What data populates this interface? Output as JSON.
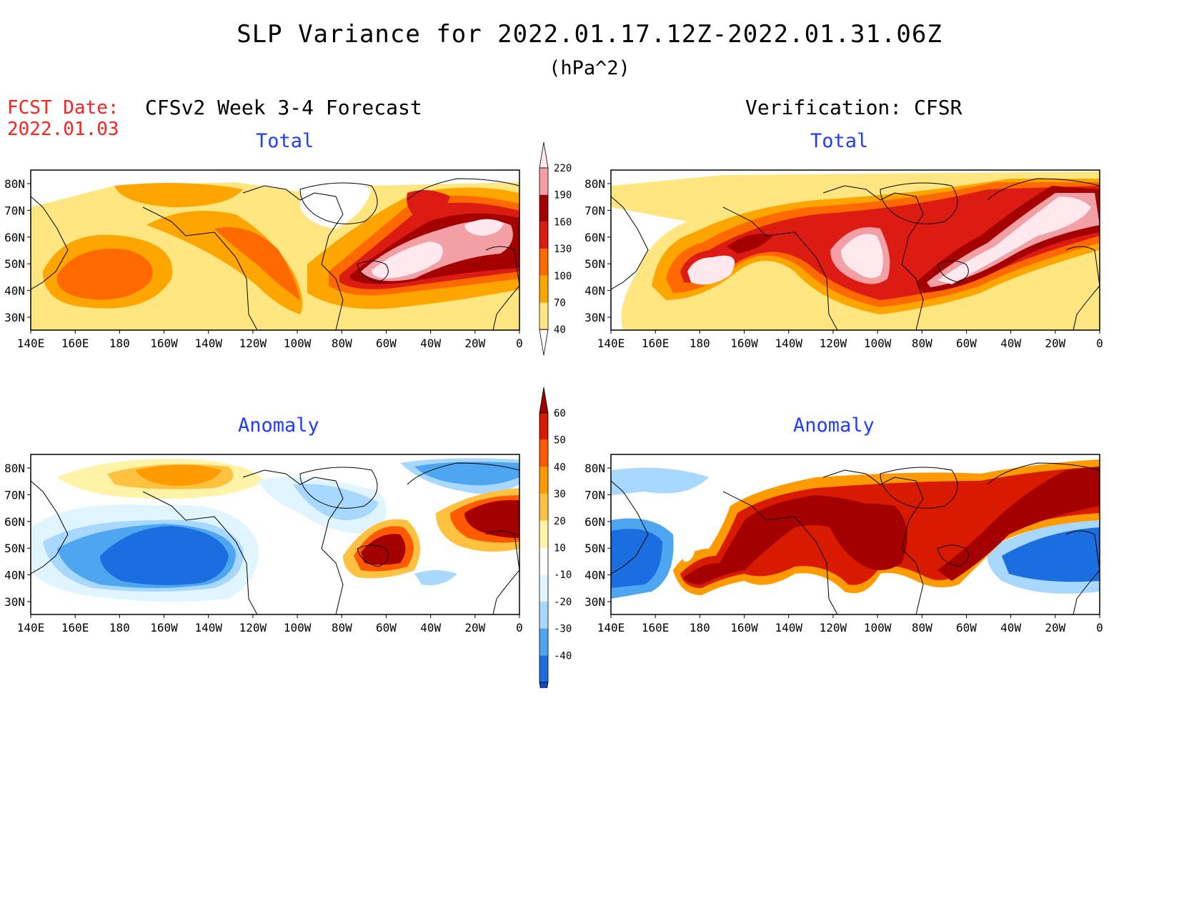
{
  "header": {
    "title": "SLP Variance for 2022.01.17.12Z-2022.01.31.06Z",
    "units": "(hPa^2)",
    "fcst_label": "FCST Date:",
    "fcst_date": "2022.01.03",
    "left_column": "CFSv2 Week 3-4 Forecast",
    "right_column": "Verification: CFSR"
  },
  "panels": [
    {
      "id": "fcst-total",
      "title": "Total"
    },
    {
      "id": "verif-total",
      "title": "Total"
    },
    {
      "id": "fcst-anomaly",
      "title": "Anomaly"
    },
    {
      "id": "verif-anomaly",
      "title": "Anomaly"
    }
  ],
  "axes": {
    "lon_labels": [
      "140E",
      "160E",
      "180",
      "160W",
      "140W",
      "120W",
      "100W",
      "80W",
      "60W",
      "40W",
      "20W",
      "0"
    ],
    "lat_labels": [
      "80N",
      "70N",
      "60N",
      "50N",
      "40N",
      "30N"
    ]
  },
  "colorbars": {
    "total": {
      "labels": [
        "40",
        "70",
        "100",
        "130",
        "160",
        "190",
        "220"
      ],
      "colors": [
        "#ffffff",
        "#ffe680",
        "#ffa500",
        "#ff6a00",
        "#dc1c13",
        "#a50000",
        "#f2a0a6",
        "#ffe8ee"
      ]
    },
    "anomaly": {
      "labels": [
        "60",
        "50",
        "40",
        "30",
        "20",
        "10",
        "-10",
        "-20",
        "-30",
        "-40"
      ],
      "colors": [
        "#a50000",
        "#d71a00",
        "#ff5a00",
        "#ff9a00",
        "#ffc240",
        "#fff3a8",
        "#ffffff",
        "#e0f5ff",
        "#a8d8ff",
        "#4ea6f0",
        "#1a6ee0",
        "#0a4cc8"
      ]
    }
  }
}
